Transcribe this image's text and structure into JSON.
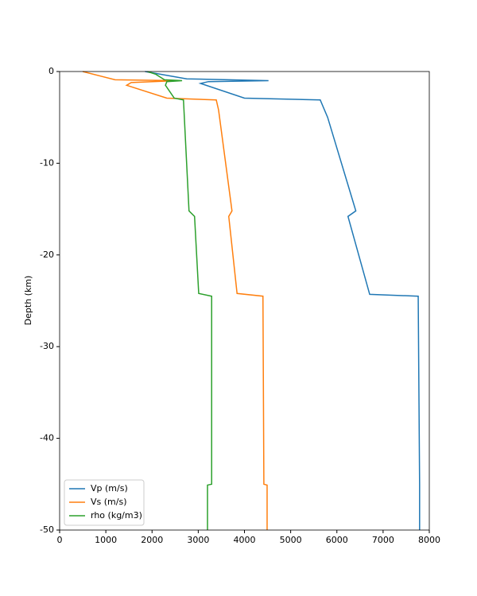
{
  "chart_data": {
    "type": "line",
    "y_label": "Depth (km)",
    "xlim": [
      0,
      8000
    ],
    "xticks": [
      0,
      1000,
      2000,
      3000,
      4000,
      5000,
      6000,
      7000,
      8000
    ],
    "ylim": [
      -50,
      0
    ],
    "yticks": [
      0,
      -10,
      -20,
      -30,
      -40,
      -50
    ],
    "grid": false,
    "legend": "lower left",
    "series": [
      {
        "name": "Vp (m/s)",
        "color": "#1f77b4",
        "x": [
          1850,
          2750,
          4520,
          3220,
          3050,
          4000,
          5640,
          5800,
          6410,
          6240,
          6710,
          7760,
          7790,
          7790
        ],
        "values": [
          0,
          -0.8,
          -1.0,
          -1.1,
          -1.3,
          -2.9,
          -3.1,
          -5,
          -15.2,
          -15.8,
          -24.3,
          -24.5,
          -45,
          -50
        ]
      },
      {
        "name": "Vs (m/s)",
        "color": "#ff7f0e",
        "x": [
          500,
          1200,
          2530,
          1550,
          1450,
          2320,
          3390,
          3440,
          3730,
          3660,
          3840,
          4400,
          4420,
          4490,
          4490
        ],
        "values": [
          0,
          -0.9,
          -1.0,
          -1.2,
          -1.5,
          -2.9,
          -3.1,
          -4.2,
          -15.2,
          -15.8,
          -24.2,
          -24.5,
          -45,
          -45.1,
          -50
        ]
      },
      {
        "name": "rho (kg/m3)",
        "color": "#2ca02c",
        "x": [
          1900,
          2080,
          2270,
          2650,
          2320,
          2290,
          2480,
          2680,
          2800,
          2920,
          3010,
          3290,
          3290,
          3200,
          3200
        ],
        "values": [
          0,
          -0.3,
          -0.9,
          -1.0,
          -1.1,
          -1.5,
          -2.9,
          -3.1,
          -15.2,
          -15.8,
          -24.2,
          -24.5,
          -45,
          -45.1,
          -50
        ]
      }
    ]
  }
}
